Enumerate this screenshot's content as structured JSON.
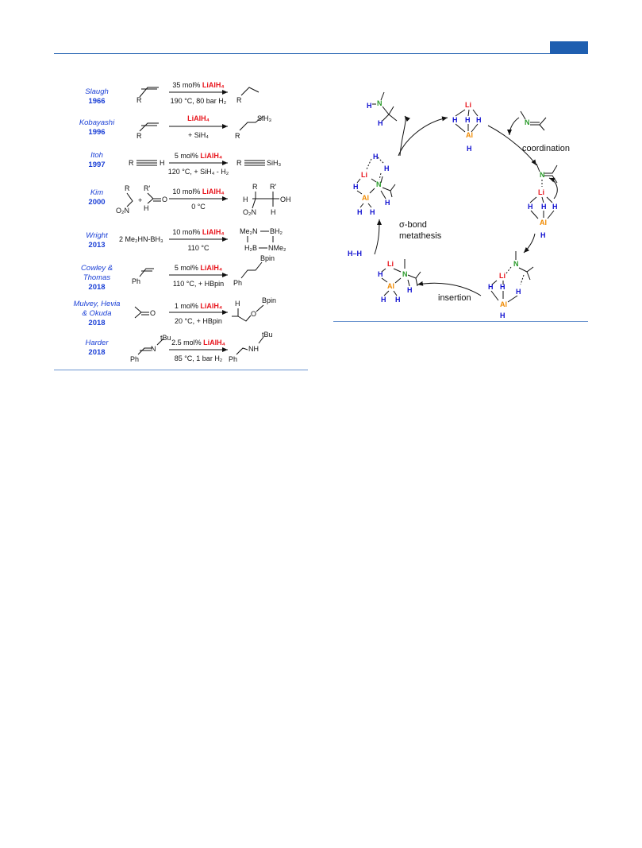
{
  "header": {
    "accent_color": "#1f5fb0"
  },
  "reactions": [
    {
      "author": "Slaugh",
      "year": "1966",
      "above_pre": "35 mol% ",
      "above_reagent": "LiAlH₄",
      "below": "190 °C, 80 bar H₂"
    },
    {
      "author": "Kobayashi",
      "year": "1996",
      "above_pre": "",
      "above_reagent": "LiAlH₄",
      "below": "+ SiH₄"
    },
    {
      "author": "Itoh",
      "year": "1997",
      "above_pre": "5 mol% ",
      "above_reagent": "LiAlH₄",
      "below": "120 °C, + SiH₄ - H₂"
    },
    {
      "author": "Kim",
      "year": "2000",
      "above_pre": "10 mol% ",
      "above_reagent": "LiAlH₄",
      "below": "0 °C"
    },
    {
      "author": "Wright",
      "year": "2013",
      "above_pre": "10 mol% ",
      "above_reagent": "LiAlH₄",
      "below": "110 °C"
    },
    {
      "author_l1": "Cowley &",
      "author_l2": "Thomas",
      "year": "2018",
      "above_pre": "5 mol% ",
      "above_reagent": "LiAlH₄",
      "below": "110 °C, + HBpin"
    },
    {
      "author_l1": "Mulvey, Hevia",
      "author_l2": "& Okuda",
      "year": "2018",
      "above_pre": "1 mol% ",
      "above_reagent": "LiAlH₄",
      "below": "20 °C, + HBpin"
    },
    {
      "author": "Harder",
      "year": "2018",
      "above_pre": "2.5 mol% ",
      "above_reagent": "LiAlH₄",
      "below": "85 °C, 1 bar H₂"
    }
  ],
  "molecules": {
    "R": "R",
    "Rp": "R'",
    "Ph": "Ph",
    "SiH3": "SiH₃",
    "H": "H",
    "O": "O",
    "OH": "OH",
    "O2N": "O₂N",
    "plus": "+",
    "wright_reactant": "2 Me₂HN-BH₃",
    "Me2N": "Me₂N",
    "BH2": "BH₂",
    "H2B": "H₂B",
    "NMe2": "NMe₂",
    "Bpin": "Bpin",
    "tBu": "tBu",
    "N": "N",
    "NH": "NH"
  },
  "cycle": {
    "coordination": "coordination",
    "insertion": "insertion",
    "sigma_l1": "σ-bond",
    "sigma_l2": "metathesis",
    "Li": "Li",
    "Al": "Al",
    "H": "H",
    "N": "N",
    "HH": "H–H"
  },
  "colors": {
    "li": "#e8141c",
    "al": "#f08a00",
    "h": "#1010d0",
    "n": "#2a9a2a",
    "author": "#1a3fd6"
  }
}
